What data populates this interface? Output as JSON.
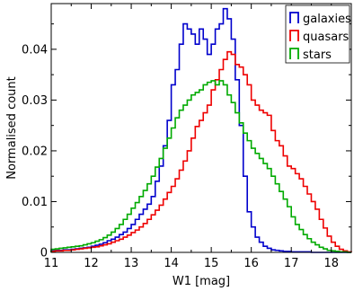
{
  "chart_data": {
    "type": "line",
    "style": "step histogram",
    "xlabel": "W1 [mag]",
    "ylabel": "Normalised count",
    "xlim": [
      11.0,
      18.5
    ],
    "ylim": [
      0.0,
      0.049
    ],
    "x_ticks": [
      11,
      12,
      13,
      14,
      15,
      16,
      17,
      18
    ],
    "y_ticks": [
      0,
      0.01,
      0.02,
      0.03,
      0.04
    ],
    "y_tick_labels": [
      "0",
      "0.01",
      "0.02",
      "0.03",
      "0.04"
    ],
    "legend_position": "top-right",
    "grid": false,
    "bin_width": 0.1,
    "series": [
      {
        "name": "galaxies",
        "color": "#0000cc",
        "x": [
          11.0,
          11.1,
          11.2,
          11.3,
          11.4,
          11.5,
          11.6,
          11.7,
          11.8,
          11.9,
          12.0,
          12.1,
          12.2,
          12.3,
          12.4,
          12.5,
          12.6,
          12.7,
          12.8,
          12.9,
          13.0,
          13.1,
          13.2,
          13.3,
          13.4,
          13.5,
          13.6,
          13.7,
          13.8,
          13.9,
          14.0,
          14.1,
          14.2,
          14.3,
          14.4,
          14.5,
          14.6,
          14.7,
          14.8,
          14.9,
          15.0,
          15.1,
          15.2,
          15.3,
          15.4,
          15.5,
          15.6,
          15.7,
          15.8,
          15.9,
          16.0,
          16.1,
          16.2,
          16.3,
          16.4,
          16.5,
          16.6,
          16.7,
          16.8,
          16.9,
          17.0,
          17.1,
          17.2,
          17.3,
          17.4,
          17.5,
          17.6,
          17.7,
          17.8,
          17.9,
          18.0,
          18.1,
          18.2,
          18.3,
          18.4
        ],
        "y": [
          0.0003,
          0.0004,
          0.0004,
          0.0005,
          0.0005,
          0.0006,
          0.0007,
          0.0008,
          0.0009,
          0.001,
          0.0012,
          0.0014,
          0.0016,
          0.0019,
          0.0023,
          0.0026,
          0.003,
          0.0035,
          0.004,
          0.0047,
          0.0055,
          0.0065,
          0.0075,
          0.0085,
          0.0095,
          0.011,
          0.014,
          0.017,
          0.021,
          0.026,
          0.033,
          0.036,
          0.041,
          0.045,
          0.044,
          0.043,
          0.041,
          0.044,
          0.042,
          0.039,
          0.041,
          0.044,
          0.045,
          0.048,
          0.046,
          0.042,
          0.034,
          0.025,
          0.015,
          0.008,
          0.005,
          0.003,
          0.002,
          0.0012,
          0.0008,
          0.0005,
          0.0004,
          0.0003,
          0.0002,
          0.0002,
          0.0001,
          0.0001,
          0.0001,
          0.0001,
          0.0001,
          0.0,
          0.0,
          0.0,
          0.0,
          0.0,
          0.0,
          0.0,
          0.0,
          0.0,
          0.0
        ]
      },
      {
        "name": "quasars",
        "color": "#ee0000",
        "x": [
          11.0,
          11.1,
          11.2,
          11.3,
          11.4,
          11.5,
          11.6,
          11.7,
          11.8,
          11.9,
          12.0,
          12.1,
          12.2,
          12.3,
          12.4,
          12.5,
          12.6,
          12.7,
          12.8,
          12.9,
          13.0,
          13.1,
          13.2,
          13.3,
          13.4,
          13.5,
          13.6,
          13.7,
          13.8,
          13.9,
          14.0,
          14.1,
          14.2,
          14.3,
          14.4,
          14.5,
          14.6,
          14.7,
          14.8,
          14.9,
          15.0,
          15.1,
          15.2,
          15.3,
          15.4,
          15.5,
          15.6,
          15.7,
          15.8,
          15.9,
          16.0,
          16.1,
          16.2,
          16.3,
          16.4,
          16.5,
          16.6,
          16.7,
          16.8,
          16.9,
          17.0,
          17.1,
          17.2,
          17.3,
          17.4,
          17.5,
          17.6,
          17.7,
          17.8,
          17.9,
          18.0,
          18.1,
          18.2,
          18.3,
          18.4
        ],
        "y": [
          0.0002,
          0.0003,
          0.0003,
          0.0004,
          0.0004,
          0.0005,
          0.0006,
          0.0007,
          0.0008,
          0.0009,
          0.001,
          0.0011,
          0.0013,
          0.0015,
          0.0017,
          0.002,
          0.0023,
          0.0026,
          0.003,
          0.0034,
          0.0039,
          0.0044,
          0.005,
          0.0057,
          0.0065,
          0.0074,
          0.0083,
          0.0093,
          0.0105,
          0.0118,
          0.013,
          0.0145,
          0.0162,
          0.018,
          0.02,
          0.0225,
          0.0248,
          0.026,
          0.0275,
          0.029,
          0.032,
          0.034,
          0.036,
          0.038,
          0.0395,
          0.039,
          0.037,
          0.0365,
          0.035,
          0.033,
          0.03,
          0.029,
          0.028,
          0.0275,
          0.027,
          0.024,
          0.022,
          0.021,
          0.019,
          0.017,
          0.0165,
          0.0155,
          0.0145,
          0.013,
          0.0115,
          0.01,
          0.0085,
          0.0065,
          0.0048,
          0.0032,
          0.002,
          0.0012,
          0.0006,
          0.0003,
          0.0001
        ]
      },
      {
        "name": "stars",
        "color": "#00aa00",
        "x": [
          11.0,
          11.1,
          11.2,
          11.3,
          11.4,
          11.5,
          11.6,
          11.7,
          11.8,
          11.9,
          12.0,
          12.1,
          12.2,
          12.3,
          12.4,
          12.5,
          12.6,
          12.7,
          12.8,
          12.9,
          13.0,
          13.1,
          13.2,
          13.3,
          13.4,
          13.5,
          13.6,
          13.7,
          13.8,
          13.9,
          14.0,
          14.1,
          14.2,
          14.3,
          14.4,
          14.5,
          14.6,
          14.7,
          14.8,
          14.9,
          15.0,
          15.1,
          15.2,
          15.3,
          15.4,
          15.5,
          15.6,
          15.7,
          15.8,
          15.9,
          16.0,
          16.1,
          16.2,
          16.3,
          16.4,
          16.5,
          16.6,
          16.7,
          16.8,
          16.9,
          17.0,
          17.1,
          17.2,
          17.3,
          17.4,
          17.5,
          17.6,
          17.7,
          17.8,
          17.9,
          18.0,
          18.1,
          18.2,
          18.3,
          18.4
        ],
        "y": [
          0.0006,
          0.0007,
          0.0008,
          0.0009,
          0.001,
          0.0011,
          0.0012,
          0.0013,
          0.0015,
          0.0017,
          0.0019,
          0.0022,
          0.0025,
          0.0029,
          0.0034,
          0.004,
          0.0047,
          0.0055,
          0.0065,
          0.0075,
          0.0087,
          0.0098,
          0.011,
          0.0122,
          0.0135,
          0.015,
          0.0168,
          0.0185,
          0.0205,
          0.0225,
          0.0245,
          0.0265,
          0.028,
          0.029,
          0.03,
          0.031,
          0.0315,
          0.032,
          0.033,
          0.0335,
          0.0338,
          0.033,
          0.0338,
          0.033,
          0.031,
          0.0295,
          0.0275,
          0.0255,
          0.0235,
          0.022,
          0.0205,
          0.0195,
          0.0185,
          0.0175,
          0.0165,
          0.015,
          0.0135,
          0.012,
          0.0105,
          0.009,
          0.007,
          0.0055,
          0.0045,
          0.0035,
          0.0027,
          0.002,
          0.0015,
          0.001,
          0.0007,
          0.0004,
          0.0003,
          0.0002,
          0.0001,
          0.0001,
          0.0
        ]
      }
    ]
  }
}
